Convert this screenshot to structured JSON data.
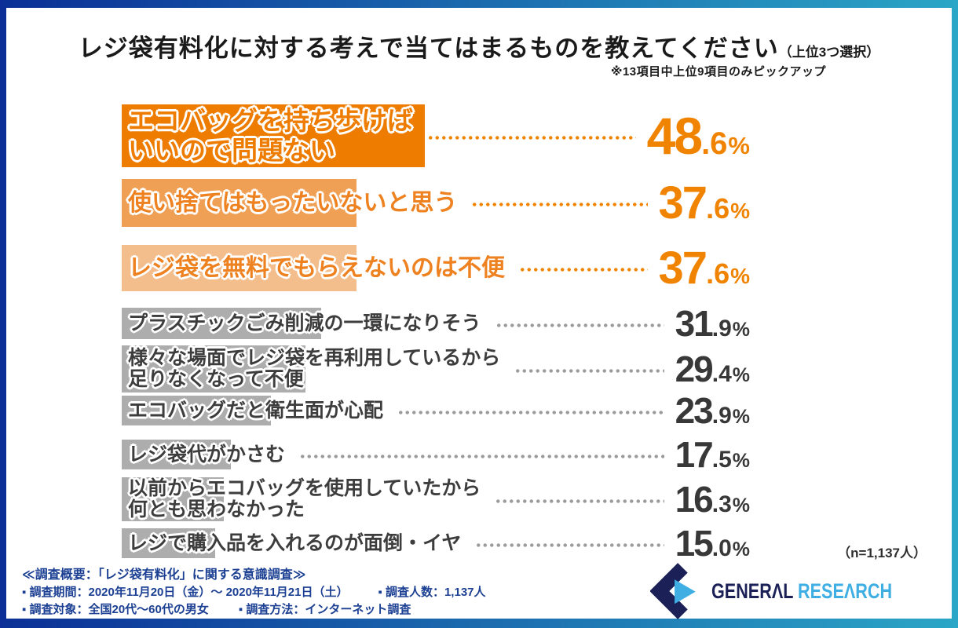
{
  "header": {
    "title": "レジ袋有料化に対する考えで当てはまるものを教えてください",
    "title_suffix": "（上位3つ選択）",
    "note": "※13項目中上位9項目のみピックアップ"
  },
  "chart_data": {
    "type": "bar",
    "orientation": "horizontal",
    "title": "レジ袋有料化に対する考えで当てはまるものを教えてください（上位3つ選択）",
    "note": "※13項目中上位9項目のみピックアップ",
    "unit": "%",
    "n_label": "（n=1,137人）",
    "categories": [
      "エコバッグを持ち歩けばいいので問題ない",
      "使い捨てはもったいないと思う",
      "レジ袋を無料でもらえないのは不便",
      "プラスチックごみ削減の一環になりそう",
      "様々な場面でレジ袋を再利用しているから足りなくなって不便",
      "エコバッグだと衛生面が心配",
      "レジ袋代がかさむ",
      "以前からエコバッグを使用していたから何とも思わなかった",
      "レジで購入品を入れるのが面倒・イヤ"
    ],
    "values": [
      48.6,
      37.6,
      37.6,
      31.9,
      29.4,
      23.9,
      17.5,
      16.3,
      15.0
    ],
    "items": [
      {
        "label_lines": [
          "エコバッグを持ち歩けば",
          "いいので問題ない"
        ],
        "value": 48.6
      },
      {
        "label_lines": [
          "使い捨てはもったいないと思う"
        ],
        "value": 37.6
      },
      {
        "label_lines": [
          "レジ袋を無料でもらえないのは不便"
        ],
        "value": 37.6
      },
      {
        "label_lines": [
          "プラスチックごみ削減の一環になりそう"
        ],
        "value": 31.9
      },
      {
        "label_lines": [
          "様々な場面でレジ袋を再利用しているから",
          "足りなくなって不便"
        ],
        "value": 29.4
      },
      {
        "label_lines": [
          "エコバッグだと衛生面が心配"
        ],
        "value": 23.9
      },
      {
        "label_lines": [
          "レジ袋代がかさむ"
        ],
        "value": 17.5
      },
      {
        "label_lines": [
          "以前からエコバッグを使用していたから",
          "何とも思わなかった"
        ],
        "value": 16.3
      },
      {
        "label_lines": [
          "レジで購入品を入れるのが面倒・イヤ"
        ],
        "value": 15.0
      }
    ],
    "colors": {
      "rank1_bar": "#ED7C00",
      "rank2_bar": "#F0A055",
      "rank3_bar": "#F4BD8C",
      "gray_bar": "#ADADAD",
      "orange_text": "#EE8120",
      "gray_text": "#3D3D3D",
      "orange_value": "#F08300",
      "gray_value": "#383838",
      "leader_orange": "#F08300",
      "leader_gray": "#9C9C9C"
    }
  },
  "footnote": {
    "n_label": "（n=1,137人）"
  },
  "survey": {
    "line1": "≪調査概要：「レジ袋有料化」に関する意識調査≫",
    "line2a": "▪ 調査期間：2020年11月20日（金）～ 2020年11月21日（土）",
    "line2b": "▪ 調査人数：1,137人",
    "line3a": "▪ 調査対象：全国20代～60代の男女",
    "line3b": "▪ 調査方法：インターネット調査"
  },
  "logo": {
    "word1": "GENERΛL",
    "word2": "RESEΛRCH",
    "navy": "#1B2156",
    "cyan": "#3FAEE3"
  },
  "frame": {
    "blue": "#0B2F96",
    "teal": "#2BA6C6"
  }
}
